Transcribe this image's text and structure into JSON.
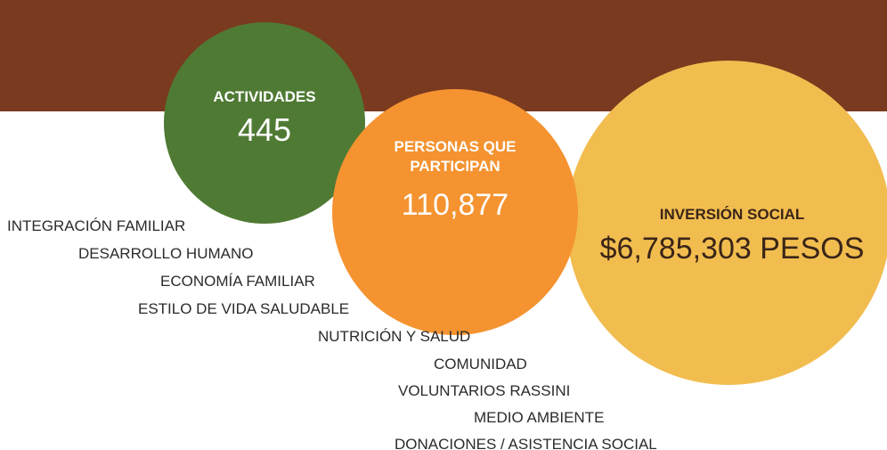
{
  "stats": [
    {
      "label": [
        "ACTIVIDADES"
      ],
      "value": "445"
    },
    {
      "label": [
        "PERSONAS QUE",
        "PARTICIPAN"
      ],
      "value": "110,877"
    },
    {
      "label": [
        "INVERSIÓN SOCIAL"
      ],
      "value": "$6,785,303 PESOS"
    }
  ],
  "programs": [
    "INTEGRACIÓN FAMILIAR",
    "DESARROLLO HUMANO",
    "ECONOMÍA FAMILIAR",
    "ESTILO DE VIDA SALUDABLE",
    "NUTRICIÓN Y SALUD",
    "COMUNIDAD",
    "VOLUNTARIOS RASSINI",
    "MEDIO AMBIENTE",
    "DONACIONES / ASISTENCIA SOCIAL"
  ]
}
